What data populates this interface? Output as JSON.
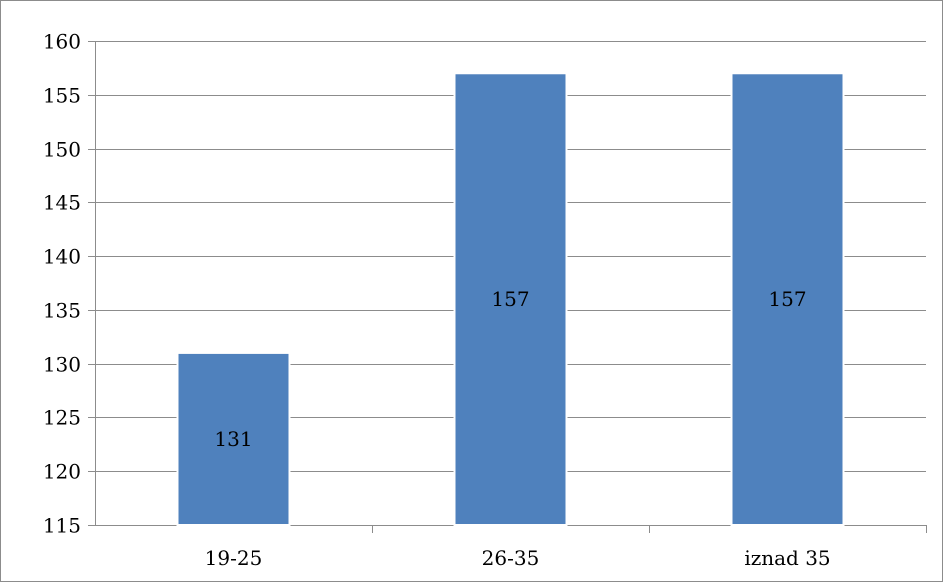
{
  "chart_data": {
    "type": "bar",
    "categories": [
      "19-25",
      "26-35",
      "iznad 35"
    ],
    "values": [
      131,
      157,
      157
    ],
    "data_labels": [
      "131",
      "157",
      "157"
    ],
    "title": "",
    "xlabel": "",
    "ylabel": "",
    "ylim": [
      115,
      160
    ],
    "y_ticks": [
      115,
      120,
      125,
      130,
      135,
      140,
      145,
      150,
      155,
      160
    ],
    "grid": true,
    "legend": "none",
    "colors": {
      "bar": "#4F81BD",
      "bar_edge": "#ffffff",
      "grid": "#8c8c8c",
      "axis": "#8c8c8c",
      "text": "#000000"
    }
  }
}
